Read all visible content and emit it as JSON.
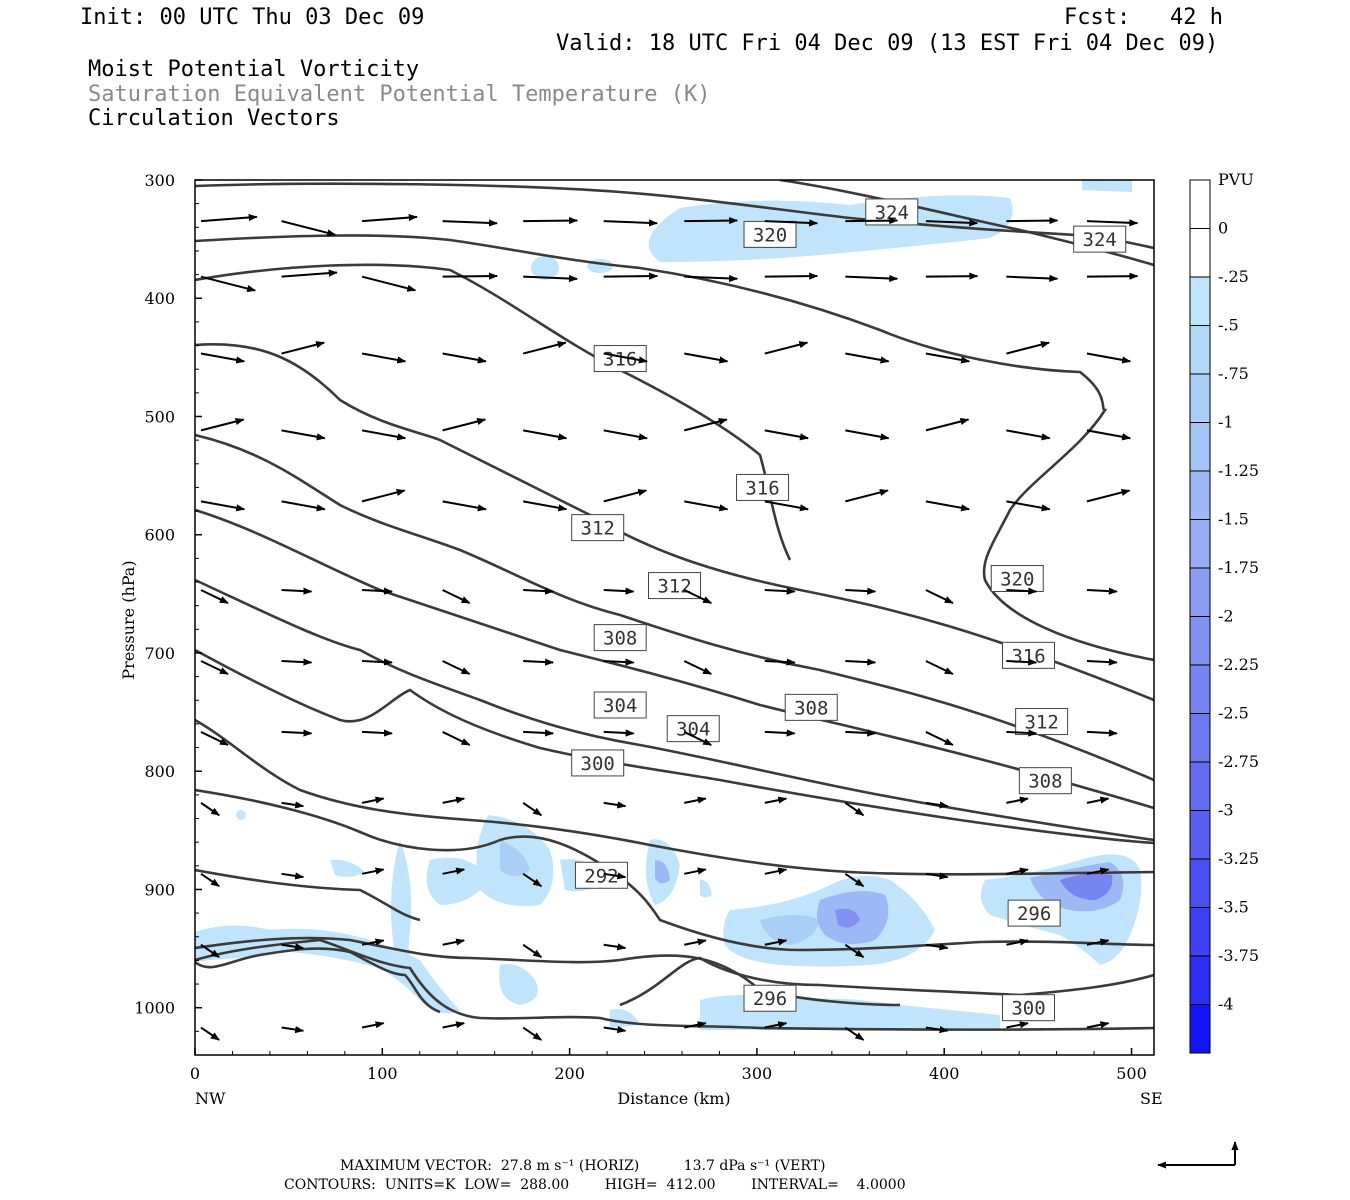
{
  "header": {
    "init": "Init: 00 UTC Thu 03 Dec 09",
    "fcst": "Fcst:   42 h",
    "valid": "Valid: 18 UTC Fri 04 Dec 09 (13 EST Fri 04 Dec 09)",
    "fields": [
      "Moist Potential Vorticity",
      "Saturation Equivalent Potential Temperature (K)",
      "Circulation Vectors"
    ]
  },
  "chart_data": {
    "type": "cross-section",
    "xlabel": "Distance (km)",
    "ylabel": "Pressure (hPa)",
    "xlim": [
      0,
      512
    ],
    "ylim": [
      1040,
      300
    ],
    "x_ticks": [
      0,
      100,
      200,
      300,
      400,
      500
    ],
    "y_ticks": [
      300,
      400,
      500,
      600,
      700,
      800,
      900,
      1000
    ],
    "x_end_labels": {
      "left": "NW",
      "right": "SE"
    },
    "colorbar": {
      "title": "PVU",
      "levels": [
        "0",
        "-.25",
        "-.5",
        "-.75",
        "-1",
        "-1.25",
        "-1.5",
        "-1.75",
        "-2",
        "-2.25",
        "-2.5",
        "-2.75",
        "-3",
        "-3.25",
        "-3.5",
        "-3.75",
        "-4"
      ],
      "colors": [
        "#ffffff",
        "#ffffff",
        "#bfe4fb",
        "#b2d9f8",
        "#aacff6",
        "#a4c4f5",
        "#9db8f4",
        "#96acf3",
        "#8c9df1",
        "#8290f0",
        "#7884ef",
        "#6e78ef",
        "#646cef",
        "#5a5ff0",
        "#4d50f1",
        "#3f40f3",
        "#2d2ef5",
        "#1414f9"
      ]
    },
    "contour_labels": [
      {
        "text": "324",
        "x": 372,
        "p": 327
      },
      {
        "text": "324",
        "x": 483,
        "p": 350
      },
      {
        "text": "320",
        "x": 307,
        "p": 346
      },
      {
        "text": "316",
        "x": 227,
        "p": 451
      },
      {
        "text": "316",
        "x": 303,
        "p": 560
      },
      {
        "text": "312",
        "x": 215,
        "p": 594
      },
      {
        "text": "312",
        "x": 256,
        "p": 643
      },
      {
        "text": "320",
        "x": 439,
        "p": 637
      },
      {
        "text": "308",
        "x": 227,
        "p": 687
      },
      {
        "text": "316",
        "x": 445,
        "p": 702
      },
      {
        "text": "304",
        "x": 227,
        "p": 744
      },
      {
        "text": "304",
        "x": 266,
        "p": 764
      },
      {
        "text": "308",
        "x": 329,
        "p": 746
      },
      {
        "text": "312",
        "x": 452,
        "p": 758
      },
      {
        "text": "300",
        "x": 215,
        "p": 793
      },
      {
        "text": "308",
        "x": 454,
        "p": 808
      },
      {
        "text": "292",
        "x": 217,
        "p": 888
      },
      {
        "text": "296",
        "x": 448,
        "p": 920
      },
      {
        "text": "296",
        "x": 307,
        "p": 992
      },
      {
        "text": "300",
        "x": 445,
        "p": 1000
      }
    ]
  },
  "footer": {
    "max_vector": "MAXIMUM VECTOR:  27.8 m s⁻¹ (HORIZ)          13.7 dPa s⁻¹ (VERT)",
    "contours": "CONTOURS:  UNITS=K  LOW=  288.00        HIGH=  412.00        INTERVAL=    4.0000"
  }
}
